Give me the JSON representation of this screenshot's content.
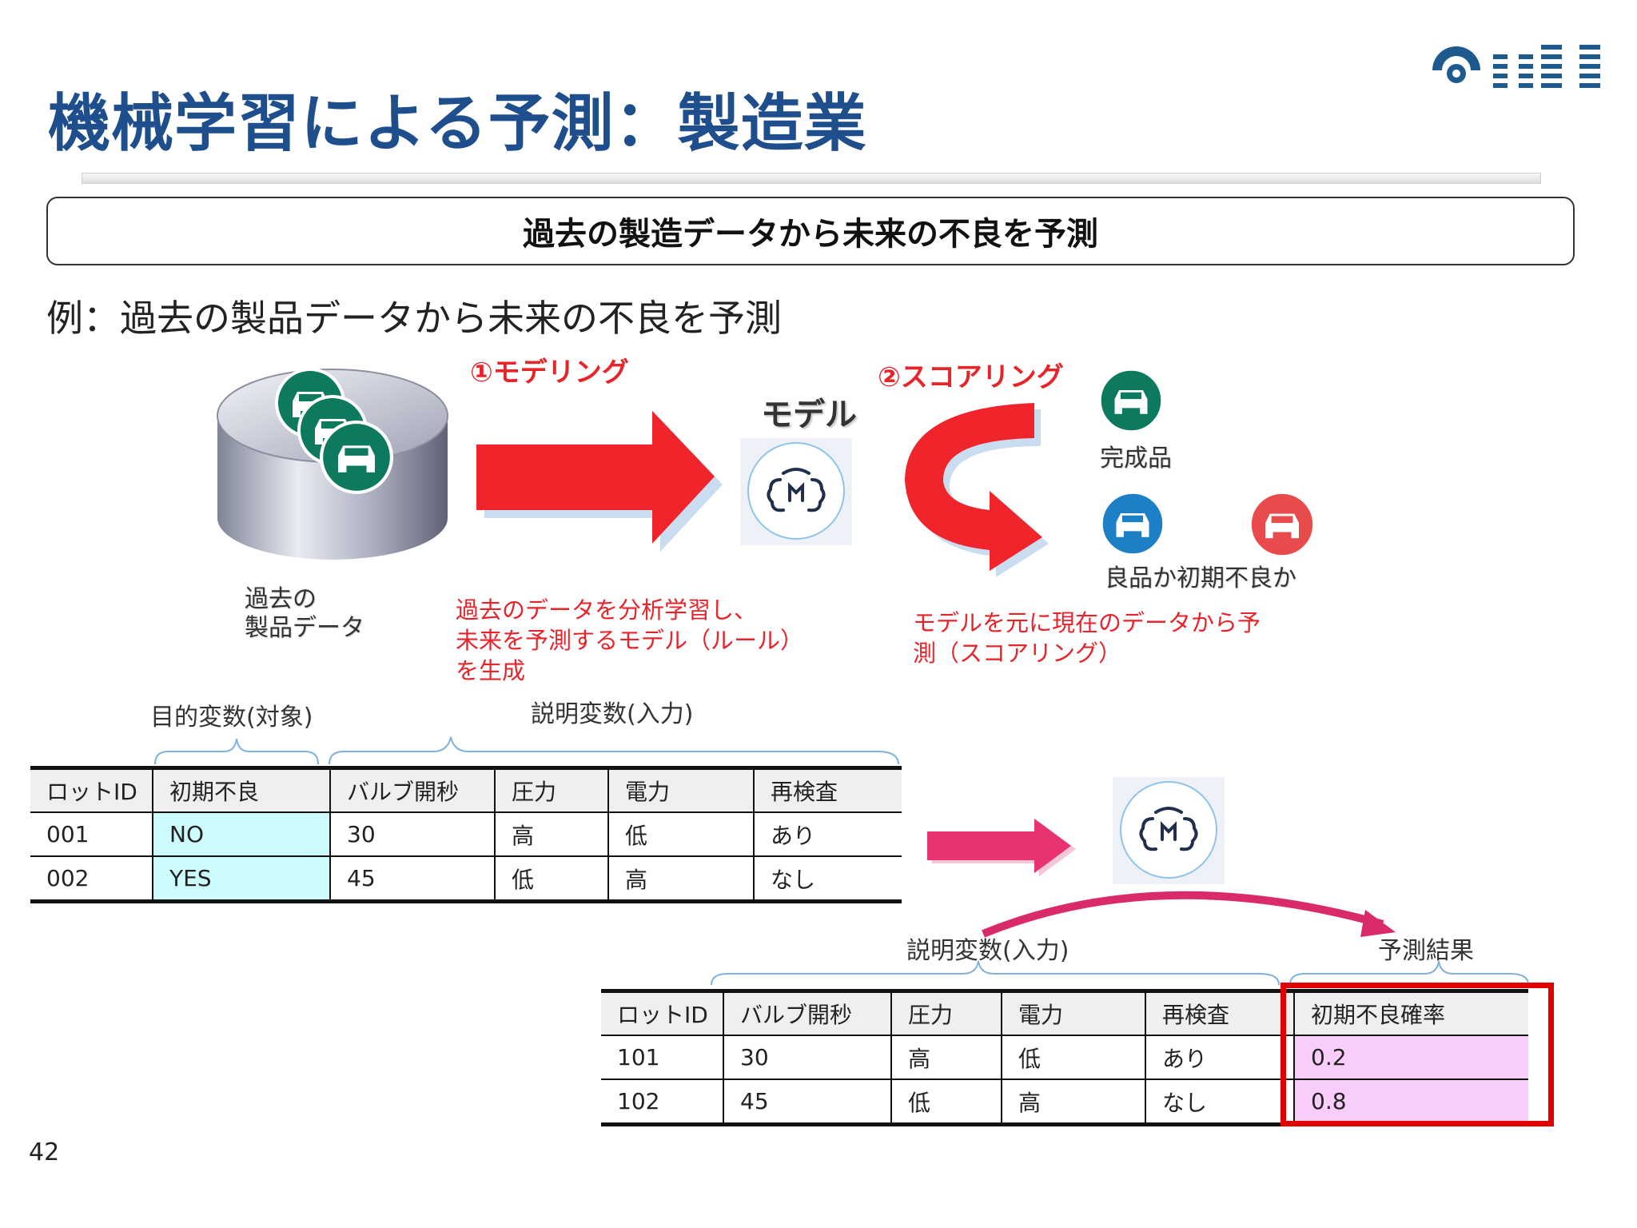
{
  "title": "機械学習による予測：製造業",
  "banner": "過去の製造データから未来の不良を予測",
  "example": "例：過去の製品データから未来の不良を予測",
  "step1": "①モデリング",
  "step2": "②スコアリング",
  "model_label": "モデル",
  "db_label": [
    "過去の",
    "製品データ"
  ],
  "modeling_desc": [
    "過去のデータを分析学習し、",
    "未来を予測するモデル（ルール）",
    "を生成"
  ],
  "scoring_desc": [
    "モデルを元に現在のデータから予",
    "測（スコアリング）"
  ],
  "finished_label": "完成品",
  "result_label": "良品か初期不良か",
  "colors": {
    "title": "#1e4f8c",
    "accent_red": "#e8242b",
    "car_green": "#0d7a5f",
    "car_blue": "#1d7fc6",
    "car_red": "#e84b4b",
    "target_fill": "#cdfcff",
    "prediction_fill": "#f9cdf9"
  },
  "icons": [
    "car-icon",
    "model-brain-icon",
    "database-icon",
    "logo"
  ],
  "train": {
    "target_label": "目的変数(対象)",
    "features_label": "説明変数(入力)",
    "headers": [
      "ロットID",
      "初期不良",
      "バルブ開秒",
      "圧力",
      "電力",
      "再検査"
    ],
    "rows": [
      [
        "001",
        "NO",
        "30",
        "高",
        "低",
        "あり"
      ],
      [
        "002",
        "YES",
        "45",
        "低",
        "高",
        "なし"
      ]
    ]
  },
  "score": {
    "features_label": "説明変数(入力)",
    "result_label": "予測結果",
    "headers": [
      "ロットID",
      "バルブ開秒",
      "圧力",
      "電力",
      "再検査",
      "初期不良確率"
    ],
    "rows": [
      [
        "101",
        "30",
        "高",
        "低",
        "あり",
        "0.2"
      ],
      [
        "102",
        "45",
        "低",
        "高",
        "なし",
        "0.8"
      ]
    ]
  },
  "page_number": "42"
}
